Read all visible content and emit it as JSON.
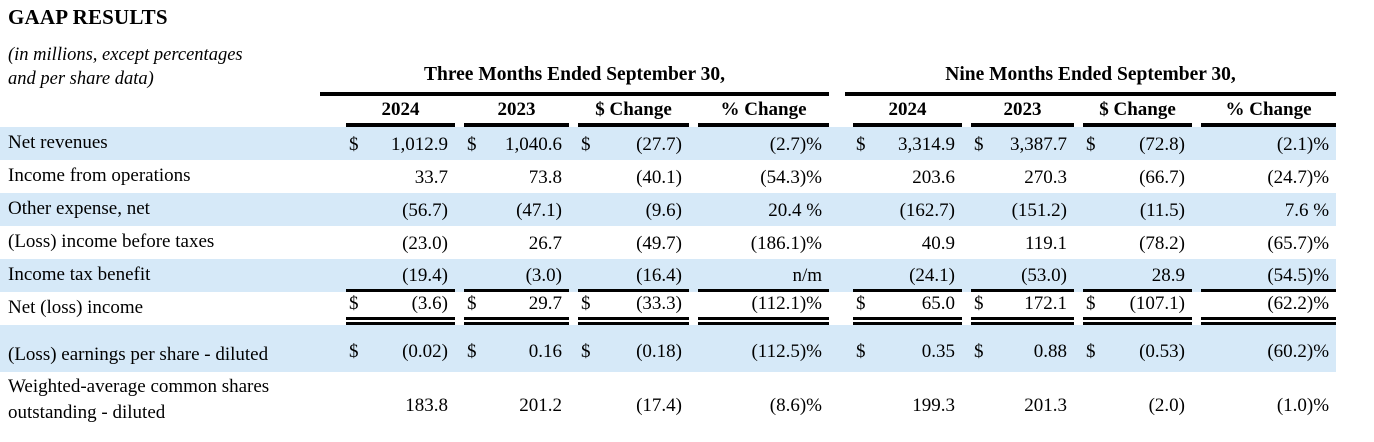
{
  "header": {
    "title": "GAAP RESULTS",
    "subtitle_line1": "(in millions, except percentages",
    "subtitle_line2": "and per share data)"
  },
  "table": {
    "groups": [
      {
        "label": "Three Months Ended September 30,"
      },
      {
        "label": "Nine Months Ended September 30,"
      }
    ],
    "columns": [
      "2024",
      "2023",
      "$ Change",
      "% Change"
    ],
    "rows": [
      {
        "label": "Net revenues",
        "cells": [
          {
            "cur": "$",
            "val": "1,012.9"
          },
          {
            "cur": "$",
            "val": "1,040.6"
          },
          {
            "cur": "$",
            "val": "(27.7)"
          },
          {
            "cur": "",
            "val": "(2.7)%"
          },
          {
            "cur": "$",
            "val": "3,314.9"
          },
          {
            "cur": "$",
            "val": "3,387.7"
          },
          {
            "cur": "$",
            "val": "(72.8)"
          },
          {
            "cur": "",
            "val": "(2.1)%"
          }
        ]
      },
      {
        "label": "Income from operations",
        "cells": [
          {
            "cur": "",
            "val": "33.7"
          },
          {
            "cur": "",
            "val": "73.8"
          },
          {
            "cur": "",
            "val": "(40.1)"
          },
          {
            "cur": "",
            "val": "(54.3)%"
          },
          {
            "cur": "",
            "val": "203.6"
          },
          {
            "cur": "",
            "val": "270.3"
          },
          {
            "cur": "",
            "val": "(66.7)"
          },
          {
            "cur": "",
            "val": "(24.7)%"
          }
        ]
      },
      {
        "label": "Other expense, net",
        "cells": [
          {
            "cur": "",
            "val": "(56.7)"
          },
          {
            "cur": "",
            "val": "(47.1)"
          },
          {
            "cur": "",
            "val": "(9.6)"
          },
          {
            "cur": "",
            "val": "20.4 %"
          },
          {
            "cur": "",
            "val": "(162.7)"
          },
          {
            "cur": "",
            "val": "(151.2)"
          },
          {
            "cur": "",
            "val": "(11.5)"
          },
          {
            "cur": "",
            "val": "7.6 %"
          }
        ]
      },
      {
        "label": "(Loss) income before taxes",
        "cells": [
          {
            "cur": "",
            "val": "(23.0)"
          },
          {
            "cur": "",
            "val": "26.7"
          },
          {
            "cur": "",
            "val": "(49.7)"
          },
          {
            "cur": "",
            "val": "(186.1)%"
          },
          {
            "cur": "",
            "val": "40.9"
          },
          {
            "cur": "",
            "val": "119.1"
          },
          {
            "cur": "",
            "val": "(78.2)"
          },
          {
            "cur": "",
            "val": "(65.7)%"
          }
        ]
      },
      {
        "label": "Income tax benefit",
        "cells": [
          {
            "cur": "",
            "val": "(19.4)"
          },
          {
            "cur": "",
            "val": "(3.0)"
          },
          {
            "cur": "",
            "val": "(16.4)"
          },
          {
            "cur": "",
            "val": "n/m"
          },
          {
            "cur": "",
            "val": "(24.1)"
          },
          {
            "cur": "",
            "val": "(53.0)"
          },
          {
            "cur": "",
            "val": "28.9"
          },
          {
            "cur": "",
            "val": "(54.5)%"
          }
        ]
      },
      {
        "label": "Net (loss) income",
        "cells": [
          {
            "cur": "$",
            "val": "(3.6)"
          },
          {
            "cur": "$",
            "val": "29.7"
          },
          {
            "cur": "$",
            "val": "(33.3)"
          },
          {
            "cur": "",
            "val": "(112.1)%"
          },
          {
            "cur": "$",
            "val": "65.0"
          },
          {
            "cur": "$",
            "val": "172.1"
          },
          {
            "cur": "$",
            "val": "(107.1)"
          },
          {
            "cur": "",
            "val": "(62.2)%"
          }
        ]
      },
      {
        "label": "(Loss) earnings per share - diluted",
        "cells": [
          {
            "cur": "$",
            "val": "(0.02)"
          },
          {
            "cur": "$",
            "val": "0.16"
          },
          {
            "cur": "$",
            "val": "(0.18)"
          },
          {
            "cur": "",
            "val": "(112.5)%"
          },
          {
            "cur": "$",
            "val": "0.35"
          },
          {
            "cur": "$",
            "val": "0.88"
          },
          {
            "cur": "$",
            "val": "(0.53)"
          },
          {
            "cur": "",
            "val": "(60.2)%"
          }
        ]
      },
      {
        "label": "Weighted-average common shares outstanding - diluted",
        "cells": [
          {
            "cur": "",
            "val": "183.8"
          },
          {
            "cur": "",
            "val": "201.2"
          },
          {
            "cur": "",
            "val": "(17.4)"
          },
          {
            "cur": "",
            "val": "(8.6)%"
          },
          {
            "cur": "",
            "val": "199.3"
          },
          {
            "cur": "",
            "val": "201.3"
          },
          {
            "cur": "",
            "val": "(2.0)"
          },
          {
            "cur": "",
            "val": "(1.0)%"
          }
        ]
      }
    ]
  }
}
